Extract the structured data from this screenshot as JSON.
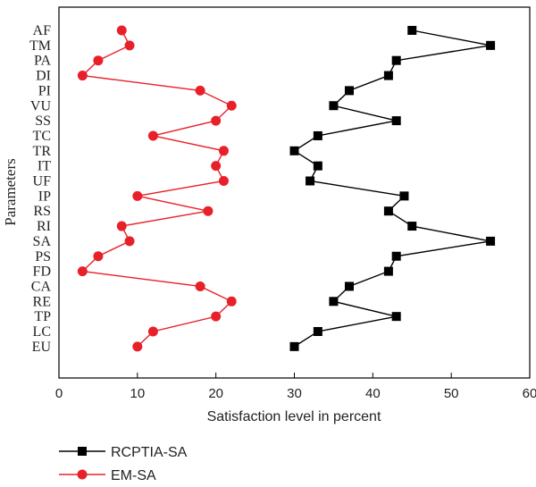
{
  "chart_data": {
    "type": "line",
    "xlabel": "Satisfaction level in percent",
    "ylabel": "Parameters",
    "xlim": [
      0,
      60
    ],
    "xticks": [
      0,
      10,
      20,
      30,
      40,
      50,
      60
    ],
    "categories": [
      "AF",
      "TM",
      "PA",
      "DI",
      "PI",
      "VU",
      "SS",
      "TC",
      "TR",
      "IT",
      "UF",
      "IP",
      "RS",
      "RI",
      "SA",
      "PS",
      "FD",
      "CA",
      "RE",
      "TP",
      "LC",
      "EU"
    ],
    "legend_position": "bottom-left",
    "series": [
      {
        "name": "RCPTIA-SA",
        "color": "#000000",
        "marker": "square",
        "values": [
          45,
          55,
          43,
          42,
          37,
          35,
          43,
          33,
          30,
          33,
          32,
          44,
          42,
          45,
          55,
          43,
          42,
          37,
          35,
          43,
          33,
          30
        ]
      },
      {
        "name": "EM-SA",
        "color": "#e8202a",
        "marker": "circle",
        "values": [
          8,
          9,
          5,
          3,
          18,
          22,
          20,
          12,
          21,
          20,
          21,
          10,
          19,
          8,
          9,
          5,
          3,
          18,
          22,
          20,
          12,
          10
        ]
      }
    ]
  }
}
